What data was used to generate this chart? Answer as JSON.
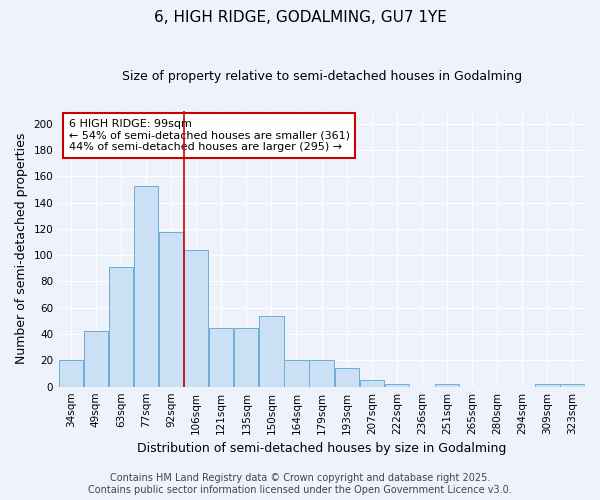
{
  "title": "6, HIGH RIDGE, GODALMING, GU7 1YE",
  "subtitle": "Size of property relative to semi-detached houses in Godalming",
  "xlabel": "Distribution of semi-detached houses by size in Godalming",
  "ylabel": "Number of semi-detached properties",
  "categories": [
    "34sqm",
    "49sqm",
    "63sqm",
    "77sqm",
    "92sqm",
    "106sqm",
    "121sqm",
    "135sqm",
    "150sqm",
    "164sqm",
    "179sqm",
    "193sqm",
    "207sqm",
    "222sqm",
    "236sqm",
    "251sqm",
    "265sqm",
    "280sqm",
    "294sqm",
    "309sqm",
    "323sqm"
  ],
  "values": [
    20,
    42,
    91,
    153,
    118,
    104,
    45,
    45,
    54,
    20,
    20,
    14,
    5,
    2,
    0,
    2,
    0,
    0,
    0,
    2,
    2
  ],
  "bar_color": "#cce0f5",
  "bar_edge_color": "#6aaed6",
  "vline_x": 4.5,
  "vline_color": "#cc0000",
  "annotation_text": "6 HIGH RIDGE: 99sqm\n← 54% of semi-detached houses are smaller (361)\n44% of semi-detached houses are larger (295) →",
  "annotation_box_facecolor": "#ffffff",
  "annotation_box_edgecolor": "#cc0000",
  "ylim": [
    0,
    210
  ],
  "yticks": [
    0,
    20,
    40,
    60,
    80,
    100,
    120,
    140,
    160,
    180,
    200
  ],
  "footer_line1": "Contains HM Land Registry data © Crown copyright and database right 2025.",
  "footer_line2": "Contains public sector information licensed under the Open Government Licence v3.0.",
  "bg_color": "#eef3fb",
  "plot_bg_color": "#eef3fb",
  "grid_color": "#ffffff",
  "title_fontsize": 11,
  "subtitle_fontsize": 9,
  "axis_label_fontsize": 9,
  "tick_fontsize": 7.5,
  "annotation_fontsize": 8,
  "footer_fontsize": 7
}
